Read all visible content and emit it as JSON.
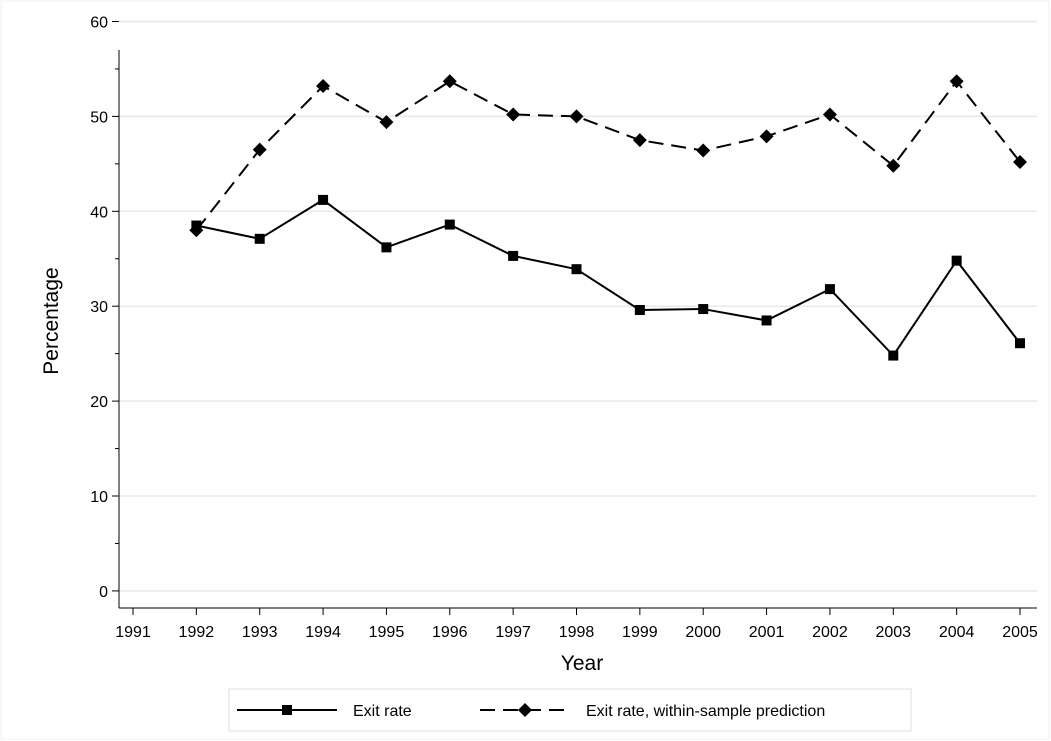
{
  "chart_data": {
    "type": "line",
    "x": [
      1991,
      1992,
      1993,
      1994,
      1995,
      1996,
      1997,
      1998,
      1999,
      2000,
      2001,
      2002,
      2003,
      2004,
      2005
    ],
    "series": [
      {
        "name": "Exit rate",
        "style": "solid",
        "marker": "square",
        "color": "#000000",
        "points": [
          [
            1992,
            38.5
          ],
          [
            1993,
            37.1
          ],
          [
            1994,
            41.2
          ],
          [
            1995,
            36.2
          ],
          [
            1996,
            38.6
          ],
          [
            1997,
            35.3
          ],
          [
            1998,
            33.9
          ],
          [
            1999,
            29.6
          ],
          [
            2000,
            29.7
          ],
          [
            2001,
            28.5
          ],
          [
            2002,
            31.8
          ],
          [
            2003,
            24.8
          ],
          [
            2004,
            34.8
          ],
          [
            2005,
            26.1
          ]
        ]
      },
      {
        "name": "Exit rate, within-sample prediction",
        "style": "dashed",
        "marker": "diamond",
        "color": "#000000",
        "points": [
          [
            1992,
            38.0
          ],
          [
            1993,
            46.5
          ],
          [
            1994,
            53.2
          ],
          [
            1995,
            49.4
          ],
          [
            1996,
            53.7
          ],
          [
            1997,
            50.2
          ],
          [
            1998,
            50.0
          ],
          [
            1999,
            47.5
          ],
          [
            2000,
            46.4
          ],
          [
            2001,
            47.9
          ],
          [
            2002,
            50.2
          ],
          [
            2003,
            44.8
          ],
          [
            2004,
            53.7
          ],
          [
            2005,
            45.2
          ]
        ]
      }
    ],
    "title": "",
    "xlabel": "Year",
    "ylabel": "Percentage",
    "xlim": [
      1991,
      2005
    ],
    "ylim": [
      0,
      60
    ],
    "yticks_major": [
      0,
      10,
      20,
      30,
      40,
      50,
      60
    ],
    "yticks_minor": [
      5,
      15,
      25,
      35,
      45,
      55
    ],
    "grid": "horizontal",
    "legend": "bottom"
  }
}
